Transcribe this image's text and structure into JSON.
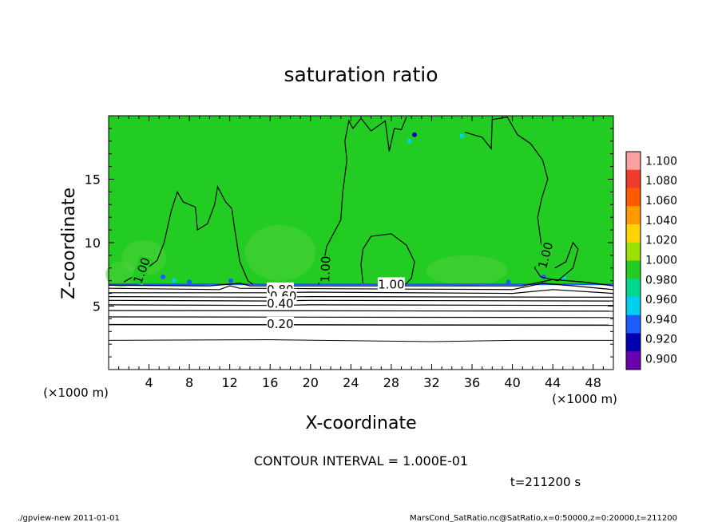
{
  "chart_data": {
    "type": "heatmap",
    "title": "saturation ratio",
    "xlabel": "X-coordinate",
    "ylabel": "Z-coordinate",
    "x_unit_label_left": "(×1000 m)",
    "x_unit_label_right": "(×1000 m)",
    "xlim": [
      0,
      50
    ],
    "ylim": [
      0,
      20
    ],
    "x_ticks": [
      4,
      8,
      12,
      16,
      20,
      24,
      28,
      32,
      36,
      40,
      44,
      48
    ],
    "y_ticks": [
      5,
      10,
      15
    ],
    "colorbar": {
      "levels": [
        "1.100",
        "1.080",
        "1.060",
        "1.040",
        "1.020",
        "1.000",
        "0.980",
        "0.960",
        "0.940",
        "0.920",
        "0.900"
      ],
      "colors": [
        "#f9a0a0",
        "#f03c2c",
        "#ff5a00",
        "#ff9a00",
        "#ffd400",
        "#9ee000",
        "#22cc22",
        "#00d890",
        "#00d0f0",
        "#1d5cff",
        "#0000b0",
        "#6a00b0"
      ]
    },
    "field_color": "#22cc22",
    "contour_labels": [
      {
        "text": "1.00",
        "x": 3.3,
        "z": 7.8,
        "angle": -70
      },
      {
        "text": "1.00",
        "x": 21.5,
        "z": 7.9,
        "angle": -88
      },
      {
        "text": "1.00",
        "x": 28.0,
        "z": 6.7,
        "angle": 0
      },
      {
        "text": "1.00",
        "x": 43.3,
        "z": 9.0,
        "angle": -75
      },
      {
        "text": "0.80",
        "x": 17.0,
        "z": 6.3,
        "angle": 0
      },
      {
        "text": "0.60",
        "x": 17.3,
        "z": 5.8,
        "angle": 0
      },
      {
        "text": "0.40",
        "x": 17.0,
        "z": 5.2,
        "angle": 0
      },
      {
        "text": "0.20",
        "x": 17.0,
        "z": 3.6,
        "angle": 0
      }
    ],
    "contour_interval": "CONTOUR INTERVAL = 1.000E-01",
    "time_label": "t=211200 s"
  },
  "footer": {
    "left": "./gpview-new  2011-01-01",
    "right": "MarsCond_SatRatio.nc@SatRatio,x=0:50000,z=0:20000,t=211200"
  }
}
